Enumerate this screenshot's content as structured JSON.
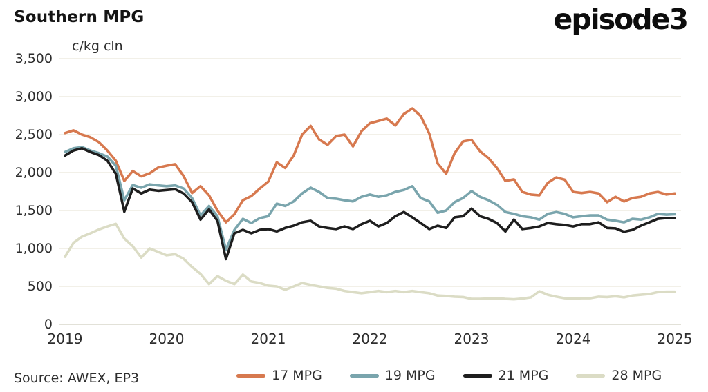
{
  "header": {
    "title": "Southern MPG",
    "logo": "episode3"
  },
  "footer": {
    "source": "Source: AWEX, EP3"
  },
  "chart_data": {
    "type": "line",
    "title": "Southern MPG",
    "unit_label": "c/kg cln",
    "grid": true,
    "legend_position": "bottom",
    "x_start_year": 2019,
    "points_per_year": 12,
    "x_range": [
      2019,
      2025
    ],
    "ylim": [
      0,
      3500
    ],
    "x_tick_labels": [
      "2019",
      "2020",
      "2021",
      "2022",
      "2023",
      "2024",
      "2025"
    ],
    "y_tick_labels": [
      "3,500",
      "3,000",
      "2,500",
      "2,000",
      "1,500",
      "1,000",
      "500",
      "0"
    ],
    "y_tick_values": [
      3500,
      3000,
      2500,
      2000,
      1500,
      1000,
      500,
      0
    ],
    "colors": {
      "17_mpg": "#D7794F",
      "19_mpg": "#7AA5AD",
      "21_mpg": "#1E1E1E",
      "28_mpg": "#DBDCC5",
      "gridline": "#EDEBE0",
      "axis_line": "#D9D7CB",
      "text": "#2E2E2E"
    },
    "series": [
      {
        "name": "17 MPG",
        "color": "#D7794F",
        "values": [
          2520,
          2555,
          2500,
          2465,
          2400,
          2290,
          2155,
          1890,
          2020,
          1950,
          1990,
          2065,
          2090,
          2110,
          1955,
          1730,
          1820,
          1700,
          1500,
          1345,
          1450,
          1635,
          1690,
          1790,
          1880,
          2135,
          2060,
          2225,
          2500,
          2615,
          2435,
          2365,
          2480,
          2500,
          2345,
          2545,
          2650,
          2680,
          2710,
          2620,
          2770,
          2845,
          2745,
          2515,
          2120,
          1985,
          2255,
          2410,
          2430,
          2280,
          2190,
          2060,
          1890,
          1910,
          1745,
          1710,
          1700,
          1865,
          1935,
          1905,
          1745,
          1730,
          1745,
          1725,
          1610,
          1680,
          1620,
          1665,
          1680,
          1725,
          1745,
          1710,
          1725
        ]
      },
      {
        "name": "19 MPG",
        "color": "#7AA5AD",
        "values": [
          2270,
          2320,
          2335,
          2290,
          2255,
          2210,
          2090,
          1635,
          1835,
          1800,
          1845,
          1830,
          1820,
          1830,
          1790,
          1665,
          1435,
          1560,
          1425,
          985,
          1245,
          1390,
          1335,
          1400,
          1425,
          1590,
          1560,
          1620,
          1725,
          1800,
          1745,
          1665,
          1655,
          1635,
          1620,
          1680,
          1710,
          1680,
          1700,
          1745,
          1770,
          1820,
          1665,
          1620,
          1470,
          1500,
          1610,
          1665,
          1755,
          1680,
          1635,
          1575,
          1480,
          1455,
          1425,
          1410,
          1380,
          1455,
          1480,
          1455,
          1410,
          1425,
          1435,
          1435,
          1380,
          1365,
          1345,
          1390,
          1380,
          1410,
          1455,
          1445,
          1450
        ]
      },
      {
        "name": "21 MPG",
        "color": "#1E1E1E",
        "values": [
          2225,
          2290,
          2320,
          2270,
          2230,
          2155,
          1985,
          1485,
          1790,
          1725,
          1775,
          1760,
          1770,
          1780,
          1725,
          1610,
          1380,
          1515,
          1365,
          860,
          1200,
          1245,
          1200,
          1245,
          1255,
          1225,
          1270,
          1300,
          1345,
          1365,
          1290,
          1270,
          1255,
          1290,
          1255,
          1320,
          1365,
          1290,
          1335,
          1425,
          1480,
          1410,
          1335,
          1255,
          1300,
          1270,
          1410,
          1425,
          1525,
          1425,
          1390,
          1335,
          1225,
          1380,
          1255,
          1270,
          1290,
          1335,
          1320,
          1310,
          1290,
          1320,
          1320,
          1345,
          1270,
          1265,
          1220,
          1245,
          1300,
          1345,
          1390,
          1400,
          1400
        ]
      },
      {
        "name": "28 MPG",
        "color": "#DBDCC5",
        "values": [
          890,
          1075,
          1155,
          1200,
          1250,
          1290,
          1325,
          1130,
          1030,
          880,
          1000,
          955,
          910,
          925,
          865,
          755,
          665,
          530,
          635,
          575,
          530,
          655,
          565,
          545,
          510,
          500,
          455,
          500,
          545,
          520,
          500,
          480,
          470,
          440,
          425,
          410,
          425,
          440,
          425,
          440,
          425,
          440,
          425,
          410,
          380,
          375,
          365,
          360,
          335,
          335,
          340,
          345,
          335,
          330,
          340,
          355,
          435,
          390,
          365,
          345,
          340,
          345,
          345,
          365,
          360,
          370,
          355,
          380,
          390,
          400,
          425,
          430,
          430
        ]
      }
    ]
  }
}
